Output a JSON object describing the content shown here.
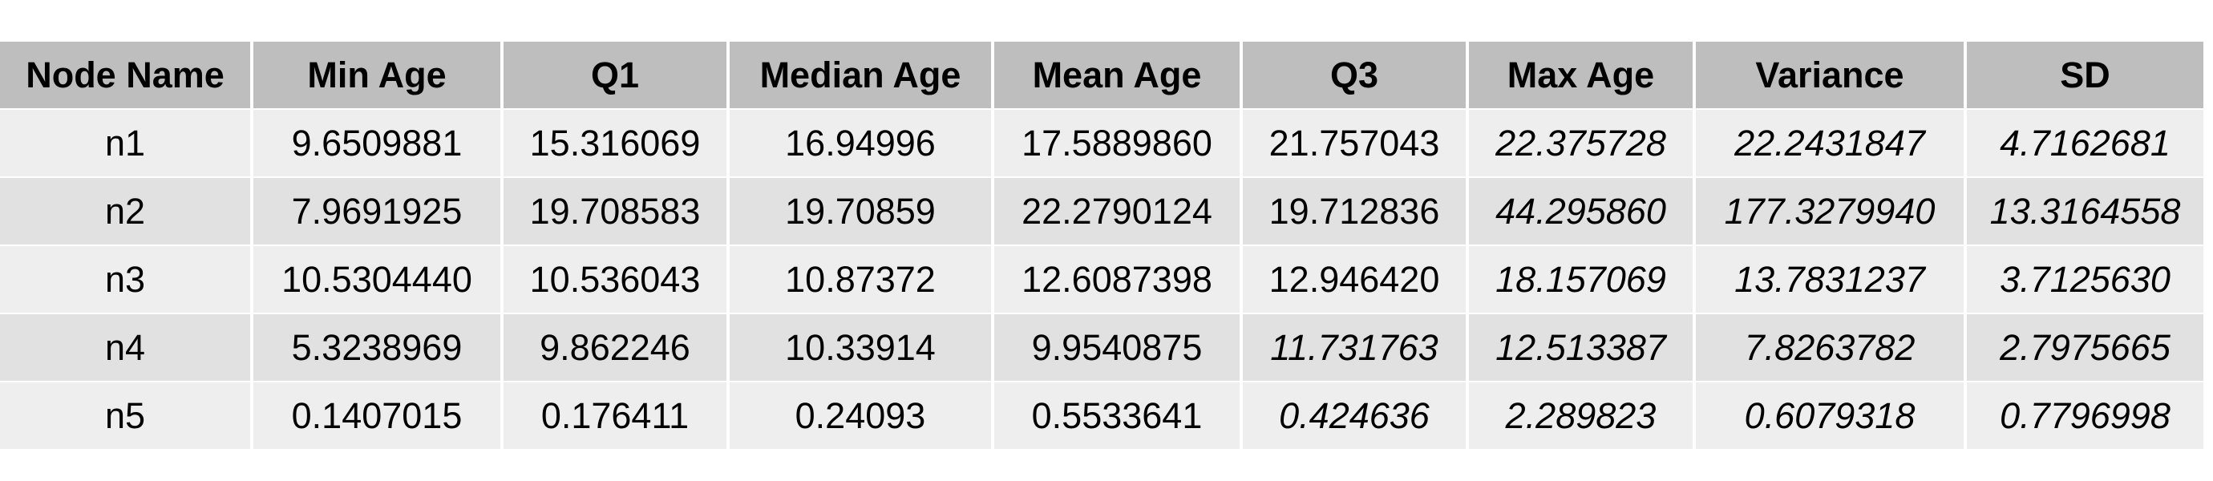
{
  "chart_data": {
    "type": "table",
    "columns": [
      "Node Name",
      "Min Age",
      "Q1",
      "Median Age",
      "Mean Age",
      "Q3",
      "Max Age",
      "Variance",
      "SD"
    ],
    "rows": [
      [
        "n1",
        "9.6509881",
        "15.316069",
        "16.94996",
        "17.5889860",
        "21.757043",
        "22.375728",
        "22.2431847",
        "4.7162681"
      ],
      [
        "n2",
        "7.9691925",
        "19.708583",
        "19.70859",
        "22.2790124",
        "19.712836",
        "44.295860",
        "177.3279940",
        "13.3164558"
      ],
      [
        "n3",
        "10.5304440",
        "10.536043",
        "10.87372",
        "12.6087398",
        "12.946420",
        "18.157069",
        "13.7831237",
        "3.7125630"
      ],
      [
        "n4",
        "5.3238969",
        "9.862246",
        "10.33914",
        "9.9540875",
        "11.731763",
        "12.513387",
        "7.8263782",
        "2.7975665"
      ],
      [
        "n5",
        "0.1407015",
        "0.176411",
        "0.24093",
        "0.5533641",
        "0.424636",
        "2.289823",
        "0.6079318",
        "0.7796998"
      ]
    ],
    "italic_cells": [
      [
        0,
        6
      ],
      [
        0,
        7
      ],
      [
        0,
        8
      ],
      [
        1,
        6
      ],
      [
        1,
        7
      ],
      [
        1,
        8
      ],
      [
        2,
        6
      ],
      [
        2,
        7
      ],
      [
        2,
        8
      ],
      [
        3,
        5
      ],
      [
        3,
        6
      ],
      [
        3,
        7
      ],
      [
        3,
        8
      ],
      [
        4,
        5
      ],
      [
        4,
        6
      ],
      [
        4,
        7
      ],
      [
        4,
        8
      ]
    ],
    "colors": {
      "header_bg": "#bebebe",
      "row_odd_bg": "#eeeeee",
      "row_even_bg": "#e1e1e1",
      "text": "#000000"
    }
  }
}
